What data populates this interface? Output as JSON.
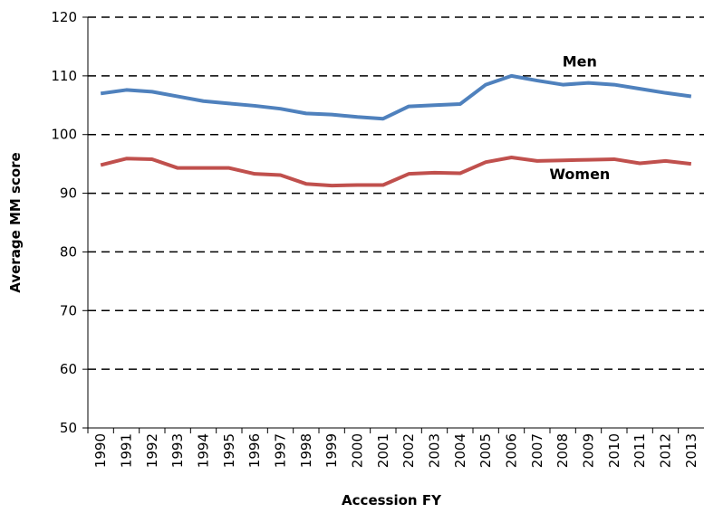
{
  "chart_data": {
    "type": "line",
    "x_label": "Accession FY",
    "y_label": "Average MM score",
    "categories": [
      "1990",
      "1991",
      "1992",
      "1993",
      "1994",
      "1995",
      "1996",
      "1997",
      "1998",
      "1999",
      "2000",
      "2001",
      "2002",
      "2003",
      "2004",
      "2005",
      "2006",
      "2007",
      "2008",
      "2009",
      "2010",
      "2011",
      "2012",
      "2013"
    ],
    "series": [
      {
        "name": "Men",
        "color": "#4f81bd",
        "values": [
          107.0,
          107.6,
          107.3,
          106.5,
          105.7,
          105.3,
          104.9,
          104.4,
          103.6,
          103.4,
          103.0,
          102.7,
          104.8,
          105.0,
          105.2,
          108.5,
          110.0,
          109.2,
          108.5,
          108.8,
          108.5,
          107.8,
          107.1,
          106.5
        ]
      },
      {
        "name": "Women",
        "color": "#c0504d",
        "values": [
          94.8,
          95.9,
          95.8,
          94.3,
          94.3,
          94.3,
          93.3,
          93.1,
          91.6,
          91.3,
          91.4,
          91.4,
          93.3,
          93.5,
          93.4,
          95.3,
          96.1,
          95.5,
          95.6,
          95.7,
          95.8,
          95.1,
          95.5,
          95.0
        ]
      }
    ],
    "ylim": [
      50,
      120
    ],
    "yticks": [
      50,
      60,
      70,
      80,
      90,
      100,
      110,
      120
    ],
    "grid": true
  }
}
